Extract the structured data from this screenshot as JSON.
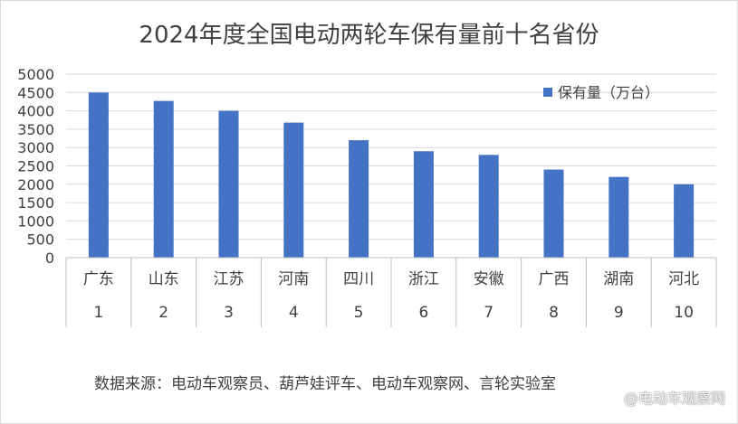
{
  "chart_data": {
    "type": "bar",
    "title": "2024年度全国电动两轮车保有量前十名省份",
    "categories": [
      "广东",
      "山东",
      "江苏",
      "河南",
      "四川",
      "浙江",
      "安徽",
      "广西",
      "湖南",
      "河北"
    ],
    "ranks": [
      "1",
      "2",
      "3",
      "4",
      "5",
      "6",
      "7",
      "8",
      "9",
      "10"
    ],
    "series": [
      {
        "name": "保有量（万台）",
        "color": "#4472c4",
        "values": [
          4500,
          4270,
          4000,
          3680,
          3200,
          2900,
          2800,
          2400,
          2200,
          2000
        ]
      }
    ],
    "yticks": [
      "0",
      "500",
      "1000",
      "1500",
      "2000",
      "2500",
      "3000",
      "3500",
      "4000",
      "4500",
      "5000"
    ],
    "ylim": [
      0,
      5000
    ],
    "grid": true,
    "legend_position": "top-right"
  },
  "footer": {
    "source": "数据来源：电动车观察员、葫芦娃评车、电动车观察网、言轮实验室",
    "watermark": "@电动车观察网"
  }
}
